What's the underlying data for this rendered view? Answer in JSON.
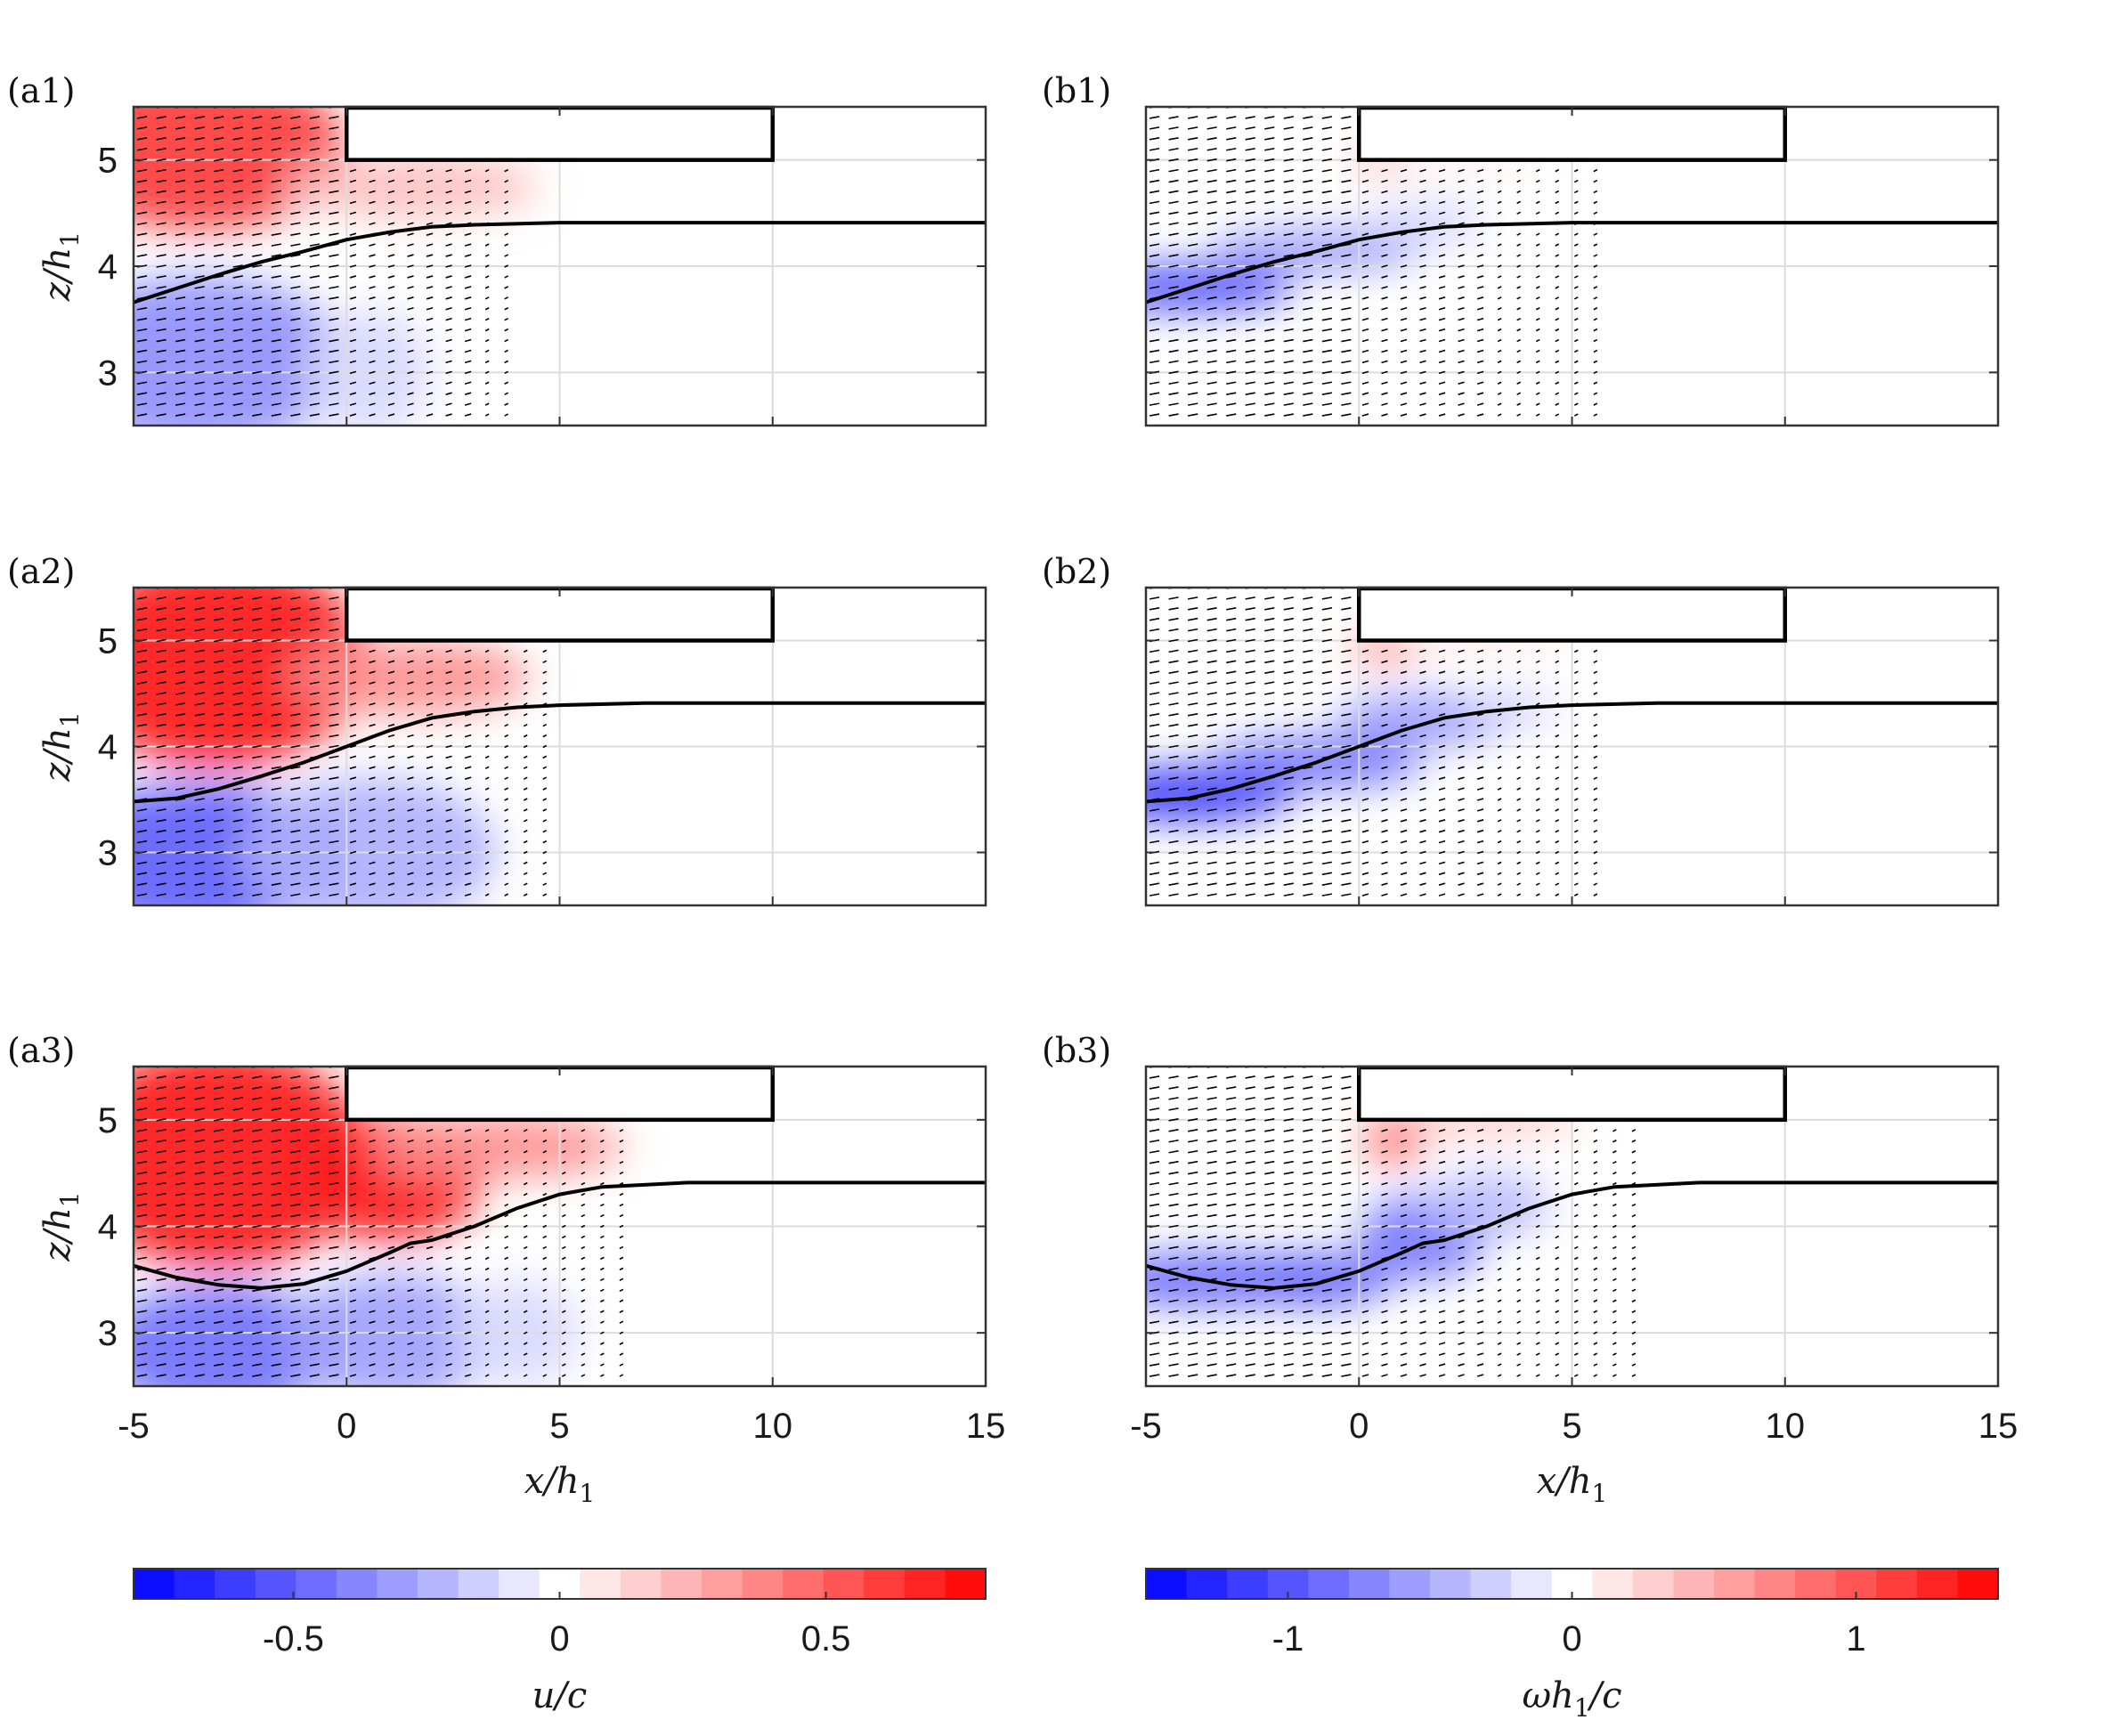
{
  "chart_data": [
    {
      "type": "heatmap",
      "panel": "(a1)",
      "field": "u/c",
      "xlim": [
        -5,
        15
      ],
      "ylim": [
        2.5,
        5.5
      ],
      "xticks": [
        -5,
        0,
        5,
        10,
        15
      ],
      "yticks": [
        3,
        4,
        5
      ],
      "ylabel": "z/h_1",
      "xlabel": "",
      "interface": [
        [
          -5,
          3.66
        ],
        [
          -4,
          3.79
        ],
        [
          -3,
          3.92
        ],
        [
          -2,
          4.04
        ],
        [
          -1,
          4.14
        ],
        [
          0,
          4.25
        ],
        [
          1,
          4.32
        ],
        [
          2,
          4.37
        ],
        [
          3,
          4.39
        ],
        [
          5,
          4.41
        ],
        [
          15,
          4.41
        ]
      ],
      "blobs": [
        {
          "x": -3.5,
          "z": 5.1,
          "rx": 3.5,
          "rz": 0.75,
          "v": 0.62
        },
        {
          "x": 1.5,
          "z": 4.75,
          "rx": 3,
          "rz": 0.3,
          "v": 0.2
        },
        {
          "x": -3.5,
          "z": 3.1,
          "rx": 3.5,
          "rz": 0.8,
          "v": -0.35
        },
        {
          "x": 0.5,
          "z": 3.0,
          "rx": 1.5,
          "rz": 0.6,
          "v": -0.12
        }
      ]
    },
    {
      "type": "heatmap",
      "panel": "(b1)",
      "field": "ωh_1/c",
      "xlim": [
        -5,
        15
      ],
      "ylim": [
        2.5,
        5.5
      ],
      "xticks": [
        -5,
        0,
        5,
        10,
        15
      ],
      "yticks": [
        3,
        4,
        5
      ],
      "ylabel": "",
      "xlabel": "",
      "interface": [
        [
          -5,
          3.66
        ],
        [
          -4,
          3.79
        ],
        [
          -3,
          3.92
        ],
        [
          -2,
          4.04
        ],
        [
          -1,
          4.14
        ],
        [
          0,
          4.25
        ],
        [
          1,
          4.32
        ],
        [
          2,
          4.37
        ],
        [
          3,
          4.39
        ],
        [
          5,
          4.41
        ],
        [
          15,
          4.41
        ]
      ],
      "blobs": [
        {
          "x": -4,
          "z": 3.8,
          "rx": 2.5,
          "rz": 0.22,
          "v": -1.05
        },
        {
          "x": -1,
          "z": 4.15,
          "rx": 2.5,
          "rz": 0.2,
          "v": -0.6
        },
        {
          "x": 1.5,
          "z": 4.4,
          "rx": 1.5,
          "rz": 0.2,
          "v": -0.25
        },
        {
          "x": 0.6,
          "z": 4.98,
          "rx": 0.8,
          "rz": 0.09,
          "v": 0.6
        },
        {
          "x": 2.5,
          "z": 4.98,
          "rx": 2,
          "rz": 0.06,
          "v": 0.2
        }
      ]
    },
    {
      "type": "heatmap",
      "panel": "(a2)",
      "field": "u/c",
      "xlim": [
        -5,
        15
      ],
      "ylim": [
        2.5,
        5.5
      ],
      "xticks": [
        -5,
        0,
        5,
        10,
        15
      ],
      "yticks": [
        3,
        4,
        5
      ],
      "ylabel": "z/h_1",
      "xlabel": "",
      "interface": [
        [
          -5,
          3.48
        ],
        [
          -4,
          3.51
        ],
        [
          -3,
          3.6
        ],
        [
          -2,
          3.72
        ],
        [
          -1,
          3.85
        ],
        [
          0,
          4.0
        ],
        [
          1,
          4.15
        ],
        [
          2,
          4.27
        ],
        [
          3,
          4.33
        ],
        [
          4,
          4.37
        ],
        [
          5,
          4.39
        ],
        [
          7,
          4.41
        ],
        [
          15,
          4.41
        ]
      ],
      "blobs": [
        {
          "x": -3,
          "z": 4.8,
          "rx": 3.5,
          "rz": 1.0,
          "v": 0.72
        },
        {
          "x": 1.5,
          "z": 4.65,
          "rx": 2.8,
          "rz": 0.35,
          "v": 0.35
        },
        {
          "x": -3.5,
          "z": 2.95,
          "rx": 3.5,
          "rz": 0.7,
          "v": -0.5
        },
        {
          "x": 0.5,
          "z": 3.0,
          "rx": 3,
          "rz": 0.7,
          "v": -0.25
        }
      ]
    },
    {
      "type": "heatmap",
      "panel": "(b2)",
      "field": "ωh_1/c",
      "xlim": [
        -5,
        15
      ],
      "ylim": [
        2.5,
        5.5
      ],
      "xticks": [
        -5,
        0,
        5,
        10,
        15
      ],
      "yticks": [
        3,
        4,
        5
      ],
      "ylabel": "",
      "xlabel": "",
      "interface": [
        [
          -5,
          3.48
        ],
        [
          -4,
          3.51
        ],
        [
          -3,
          3.6
        ],
        [
          -2,
          3.72
        ],
        [
          -1,
          3.85
        ],
        [
          0,
          4.0
        ],
        [
          1,
          4.15
        ],
        [
          2,
          4.27
        ],
        [
          3,
          4.33
        ],
        [
          4,
          4.37
        ],
        [
          5,
          4.39
        ],
        [
          7,
          4.41
        ],
        [
          15,
          4.41
        ]
      ],
      "blobs": [
        {
          "x": -4,
          "z": 3.55,
          "rx": 2.5,
          "rz": 0.25,
          "v": -1.2
        },
        {
          "x": -1,
          "z": 3.85,
          "rx": 2.5,
          "rz": 0.25,
          "v": -0.8
        },
        {
          "x": 1.5,
          "z": 4.25,
          "rx": 2,
          "rz": 0.25,
          "v": -0.6
        },
        {
          "x": 3.5,
          "z": 4.35,
          "rx": 1.2,
          "rz": 0.15,
          "v": -0.3
        },
        {
          "x": 0.6,
          "z": 4.92,
          "rx": 0.8,
          "rz": 0.12,
          "v": 0.8
        },
        {
          "x": 2.8,
          "z": 5.02,
          "rx": 2.2,
          "rz": 0.06,
          "v": 0.3
        }
      ]
    },
    {
      "type": "heatmap",
      "panel": "(a3)",
      "field": "u/c",
      "xlim": [
        -5,
        15
      ],
      "ylim": [
        2.5,
        5.5
      ],
      "xticks": [
        -5,
        0,
        5,
        10,
        15
      ],
      "yticks": [
        3,
        4,
        5
      ],
      "ylabel": "z/h_1",
      "xlabel": "x/h_1",
      "interface": [
        [
          -5,
          3.63
        ],
        [
          -4,
          3.52
        ],
        [
          -3,
          3.45
        ],
        [
          -2,
          3.42
        ],
        [
          -1,
          3.46
        ],
        [
          0,
          3.58
        ],
        [
          1,
          3.75
        ],
        [
          1.5,
          3.84
        ],
        [
          2,
          3.87
        ],
        [
          3,
          4.0
        ],
        [
          4,
          4.17
        ],
        [
          5,
          4.3
        ],
        [
          6,
          4.37
        ],
        [
          8,
          4.41
        ],
        [
          15,
          4.41
        ]
      ],
      "blobs": [
        {
          "x": -3,
          "z": 4.65,
          "rx": 3.5,
          "rz": 1.05,
          "v": 0.72
        },
        {
          "x": 1,
          "z": 4.45,
          "rx": 2.2,
          "rz": 0.6,
          "v": 0.7
        },
        {
          "x": 3.5,
          "z": 4.75,
          "rx": 3,
          "rz": 0.3,
          "v": 0.35
        },
        {
          "x": -3,
          "z": 2.85,
          "rx": 2.8,
          "rz": 0.6,
          "v": -0.45
        },
        {
          "x": 1,
          "z": 2.95,
          "rx": 2.5,
          "rz": 0.6,
          "v": -0.3
        },
        {
          "x": 4,
          "z": 3.0,
          "rx": 1.5,
          "rz": 0.5,
          "v": -0.12
        }
      ]
    },
    {
      "type": "heatmap",
      "panel": "(b3)",
      "field": "ωh_1/c",
      "xlim": [
        -5,
        15
      ],
      "ylim": [
        2.5,
        5.5
      ],
      "xticks": [
        -5,
        0,
        5,
        10,
        15
      ],
      "yticks": [
        3,
        4,
        5
      ],
      "ylabel": "",
      "xlabel": "x/h_1",
      "interface": [
        [
          -5,
          3.63
        ],
        [
          -4,
          3.52
        ],
        [
          -3,
          3.45
        ],
        [
          -2,
          3.42
        ],
        [
          -1,
          3.46
        ],
        [
          0,
          3.58
        ],
        [
          1,
          3.75
        ],
        [
          1.5,
          3.84
        ],
        [
          2,
          3.87
        ],
        [
          3,
          4.0
        ],
        [
          4,
          4.17
        ],
        [
          5,
          4.3
        ],
        [
          6,
          4.37
        ],
        [
          8,
          4.41
        ],
        [
          15,
          4.41
        ]
      ],
      "blobs": [
        {
          "x": -3.5,
          "z": 3.5,
          "rx": 2.8,
          "rz": 0.25,
          "v": -0.9
        },
        {
          "x": -1,
          "z": 3.5,
          "rx": 1.8,
          "rz": 0.25,
          "v": -0.9
        },
        {
          "x": 1.5,
          "z": 3.9,
          "rx": 1.5,
          "rz": 0.4,
          "v": -0.8
        },
        {
          "x": 3,
          "z": 4.2,
          "rx": 1.5,
          "rz": 0.3,
          "v": -0.4
        },
        {
          "x": 0.8,
          "z": 4.8,
          "rx": 0.7,
          "rz": 0.2,
          "v": 0.9
        },
        {
          "x": 2.8,
          "z": 5.0,
          "rx": 2.5,
          "rz": 0.1,
          "v": 0.5
        }
      ]
    }
  ],
  "colorbars": [
    {
      "field": "u/c",
      "label": "u/c",
      "range": [
        -0.8,
        0.8
      ],
      "ticks": [
        -0.5,
        0,
        0.5
      ],
      "tick_labels": [
        "-0.5",
        "0",
        "0.5"
      ],
      "levels": 21
    },
    {
      "field": "ωh_1/c",
      "label": "ωh_1/c",
      "range": [
        -1.5,
        1.5
      ],
      "ticks": [
        -1,
        0,
        1
      ],
      "tick_labels": [
        "-1",
        "0",
        "1"
      ],
      "levels": 21
    }
  ],
  "obstacle": {
    "x": [
      0,
      10
    ],
    "z": [
      5.0,
      5.5
    ]
  },
  "colors": {
    "positive": "#ff0000",
    "negative": "#0000ff",
    "neutral": "#ffffff",
    "interface": "#000000",
    "arrows": "#000000"
  }
}
